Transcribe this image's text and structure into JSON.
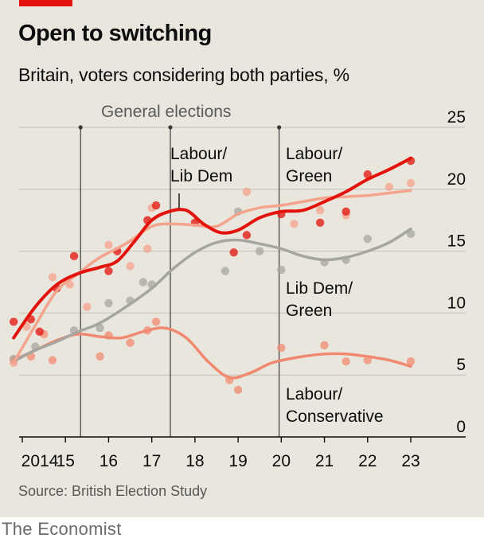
{
  "header": {
    "title": "Open to switching",
    "subtitle": "Britain, voters considering both parties, %"
  },
  "footer": {
    "source": "Source: British Election Study",
    "brand": "The Economist"
  },
  "colors": {
    "background": "#e9e7dd",
    "accent": "#e3120b",
    "labour_lib_dem": "#e3120b",
    "labour_green": "#f4a38c",
    "lib_dem_green": "#a5a69f",
    "labour_conservative": "#f08970"
  },
  "chart_data": {
    "type": "line",
    "title": "Open to switching",
    "subtitle": "Britain, voters considering both parties, %",
    "ylim": [
      0,
      25
    ],
    "y_ticks": [
      0,
      5,
      10,
      15,
      20,
      25
    ],
    "y_tick_side": "right",
    "xlim": [
      2013.75,
      2023.5
    ],
    "x_ticks": [
      {
        "value": 2014,
        "label": "2014"
      },
      {
        "value": 2015,
        "label": "15"
      },
      {
        "value": 2016,
        "label": "16"
      },
      {
        "value": 2017,
        "label": "17"
      },
      {
        "value": 2018,
        "label": "18"
      },
      {
        "value": 2019,
        "label": "19"
      },
      {
        "value": 2020,
        "label": "20"
      },
      {
        "value": 2021,
        "label": "21"
      },
      {
        "value": 2022,
        "label": "22"
      },
      {
        "value": 2023,
        "label": "23"
      }
    ],
    "grid": true,
    "annotation": {
      "label": "General elections",
      "elections": [
        2015.35,
        2017.43,
        2019.95
      ]
    },
    "series": [
      {
        "name": "Labour/ Lib Dem",
        "label_lines": [
          "Labour/",
          "Lib Dem"
        ],
        "color": "#e3120b",
        "width": 4,
        "line": [
          [
            2013.8,
            8
          ],
          [
            2014.3,
            10.5
          ],
          [
            2014.8,
            12.3
          ],
          [
            2015.3,
            13.2
          ],
          [
            2015.8,
            13.7
          ],
          [
            2016.2,
            14.2
          ],
          [
            2016.6,
            15.8
          ],
          [
            2017.0,
            17.5
          ],
          [
            2017.4,
            18.2
          ],
          [
            2017.8,
            18.3
          ],
          [
            2018.2,
            17.2
          ],
          [
            2018.6,
            16.5
          ],
          [
            2019.0,
            16.7
          ],
          [
            2019.5,
            17.7
          ],
          [
            2020.0,
            18.2
          ],
          [
            2020.5,
            18.3
          ],
          [
            2021.0,
            19.0
          ],
          [
            2021.5,
            19.8
          ],
          [
            2022.0,
            20.8
          ],
          [
            2022.5,
            21.6
          ],
          [
            2023.0,
            22.5
          ]
        ],
        "points": [
          [
            2013.8,
            9.3
          ],
          [
            2014.2,
            9.5
          ],
          [
            2014.4,
            8.5
          ],
          [
            2014.8,
            12
          ],
          [
            2015.2,
            14.6
          ],
          [
            2016.0,
            13.4
          ],
          [
            2016.2,
            15
          ],
          [
            2016.9,
            17.5
          ],
          [
            2017.1,
            18.7
          ],
          [
            2018.0,
            17.3
          ],
          [
            2018.9,
            14.9
          ],
          [
            2019.2,
            16.3
          ],
          [
            2020.0,
            18.0
          ],
          [
            2020.9,
            17.3
          ],
          [
            2021.5,
            18.2
          ],
          [
            2022.0,
            21.2
          ],
          [
            2023.0,
            22.3
          ]
        ]
      },
      {
        "name": "Labour/ Green",
        "label_lines": [
          "Labour/",
          "Green"
        ],
        "color": "#f4a38c",
        "width": 3.5,
        "line": [
          [
            2013.8,
            6
          ],
          [
            2014.3,
            9.0
          ],
          [
            2014.8,
            11.8
          ],
          [
            2015.3,
            13.2
          ],
          [
            2015.8,
            14.5
          ],
          [
            2016.4,
            15.6
          ],
          [
            2017.0,
            17.0
          ],
          [
            2017.5,
            17.2
          ],
          [
            2018.0,
            17.1
          ],
          [
            2018.5,
            17.0
          ],
          [
            2019.0,
            18.0
          ],
          [
            2019.5,
            18.5
          ],
          [
            2020.0,
            18.7
          ],
          [
            2020.5,
            19.0
          ],
          [
            2021.0,
            19.3
          ],
          [
            2021.5,
            19.4
          ],
          [
            2022.0,
            19.5
          ],
          [
            2022.5,
            19.7
          ],
          [
            2023.0,
            19.9
          ]
        ],
        "points": [
          [
            2013.8,
            6
          ],
          [
            2014.1,
            8.9
          ],
          [
            2014.5,
            8.3
          ],
          [
            2014.7,
            12.9
          ],
          [
            2015.1,
            12.3
          ],
          [
            2015.5,
            10.5
          ],
          [
            2016.0,
            15.5
          ],
          [
            2016.5,
            13.8
          ],
          [
            2016.9,
            15.2
          ],
          [
            2017.0,
            18.5
          ],
          [
            2019.2,
            19.8
          ],
          [
            2020.3,
            17.2
          ],
          [
            2020.9,
            18.3
          ],
          [
            2021.5,
            17.9
          ],
          [
            2022.5,
            20.2
          ],
          [
            2023.0,
            20.5
          ]
        ]
      },
      {
        "name": "Lib Dem/ Green",
        "label_lines": [
          "Lib Dem/",
          "Green"
        ],
        "color": "#a5a69f",
        "width": 3.5,
        "line": [
          [
            2013.8,
            6.1
          ],
          [
            2014.3,
            7.0
          ],
          [
            2014.8,
            7.7
          ],
          [
            2015.3,
            8.5
          ],
          [
            2015.8,
            9.2
          ],
          [
            2016.4,
            10.5
          ],
          [
            2017.0,
            12.0
          ],
          [
            2017.5,
            13.6
          ],
          [
            2018.0,
            14.9
          ],
          [
            2018.5,
            15.7
          ],
          [
            2019.0,
            15.9
          ],
          [
            2019.5,
            15.6
          ],
          [
            2020.0,
            15.2
          ],
          [
            2020.5,
            14.6
          ],
          [
            2021.0,
            14.3
          ],
          [
            2021.5,
            14.5
          ],
          [
            2022.0,
            15.0
          ],
          [
            2022.5,
            15.7
          ],
          [
            2023.0,
            16.8
          ]
        ],
        "points": [
          [
            2013.8,
            6.3
          ],
          [
            2014.3,
            7.3
          ],
          [
            2015.2,
            8.6
          ],
          [
            2015.8,
            8.8
          ],
          [
            2016.0,
            10.8
          ],
          [
            2016.5,
            11
          ],
          [
            2016.8,
            12.5
          ],
          [
            2017.0,
            12.3
          ],
          [
            2018.7,
            13.4
          ],
          [
            2019.0,
            18.2
          ],
          [
            2019.5,
            15
          ],
          [
            2020.0,
            13.5
          ],
          [
            2021.0,
            14.1
          ],
          [
            2021.5,
            14.3
          ],
          [
            2022.0,
            16
          ],
          [
            2023.0,
            16.4
          ]
        ]
      },
      {
        "name": "Labour/ Conservative",
        "label_lines": [
          "Labour/",
          "Conservative"
        ],
        "color": "#f08970",
        "width": 3.5,
        "line": [
          [
            2013.8,
            6.2
          ],
          [
            2014.3,
            7.0
          ],
          [
            2014.8,
            7.8
          ],
          [
            2015.3,
            8.3
          ],
          [
            2015.8,
            8.1
          ],
          [
            2016.3,
            8.0
          ],
          [
            2016.8,
            8.5
          ],
          [
            2017.3,
            8.8
          ],
          [
            2017.8,
            8.0
          ],
          [
            2018.3,
            6.1
          ],
          [
            2018.8,
            4.8
          ],
          [
            2019.3,
            5.2
          ],
          [
            2019.8,
            6.0
          ],
          [
            2020.5,
            6.5
          ],
          [
            2021.0,
            6.7
          ],
          [
            2021.5,
            6.7
          ],
          [
            2022.0,
            6.5
          ],
          [
            2022.5,
            6.2
          ],
          [
            2023.0,
            5.7
          ]
        ],
        "points": [
          [
            2013.8,
            6.2
          ],
          [
            2014.2,
            6.5
          ],
          [
            2014.7,
            6.2
          ],
          [
            2014.5,
            8.3
          ],
          [
            2015.8,
            6.5
          ],
          [
            2016.0,
            8.2
          ],
          [
            2016.5,
            7.6
          ],
          [
            2016.9,
            8.6
          ],
          [
            2017.1,
            9.3
          ],
          [
            2018.8,
            4.6
          ],
          [
            2019.0,
            3.8
          ],
          [
            2020.0,
            7.2
          ],
          [
            2021.0,
            7.4
          ],
          [
            2021.5,
            6.1
          ],
          [
            2022.0,
            6.2
          ],
          [
            2023.0,
            6.1
          ]
        ]
      }
    ]
  }
}
